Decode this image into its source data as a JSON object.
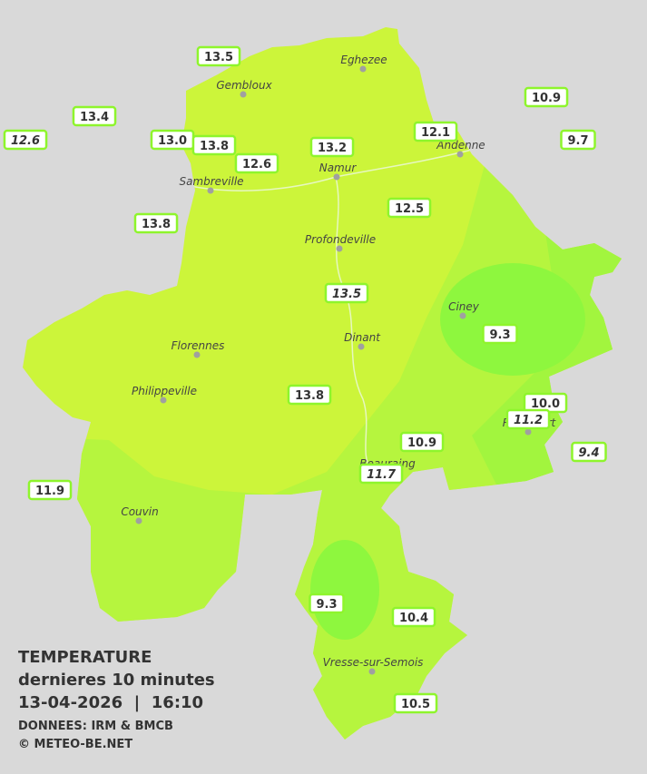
{
  "legend": {
    "title": "TEMPERATURE",
    "subtitle": "dernieres 10 minutes",
    "datetime": "13-04-2026  |  16:10",
    "source": "DONNEES: IRM & BMCB",
    "copyright": "© METEO-BE.NET"
  },
  "cities": [
    "Eghezee",
    "Gembloux",
    "Andenne",
    "Namur",
    "Sambreville",
    "Profondeville",
    "Ciney",
    "Dinant",
    "Florennes",
    "Philippeville",
    "Rochefort",
    "Beauraing",
    "Couvin",
    "Vresse-sur-Semois"
  ],
  "stations": [
    {
      "label": "13.5"
    },
    {
      "label": "13.4"
    },
    {
      "label": "12.6",
      "italic": true
    },
    {
      "label": "13.0"
    },
    {
      "label": "13.8"
    },
    {
      "label": "12.6"
    },
    {
      "label": "13.2"
    },
    {
      "label": "12.1"
    },
    {
      "label": "10.9"
    },
    {
      "label": "9.7"
    },
    {
      "label": "13.8"
    },
    {
      "label": "12.5"
    },
    {
      "label": "13.5",
      "italic": true
    },
    {
      "label": "9.3"
    },
    {
      "label": "13.8"
    },
    {
      "label": "10.0"
    },
    {
      "label": "11.2",
      "italic": true
    },
    {
      "label": "9.4",
      "italic": true
    },
    {
      "label": "10.9"
    },
    {
      "label": "11.7",
      "italic": true
    },
    {
      "label": "11.9"
    },
    {
      "label": "9.3"
    },
    {
      "label": "10.4"
    },
    {
      "label": "10.5"
    }
  ]
}
